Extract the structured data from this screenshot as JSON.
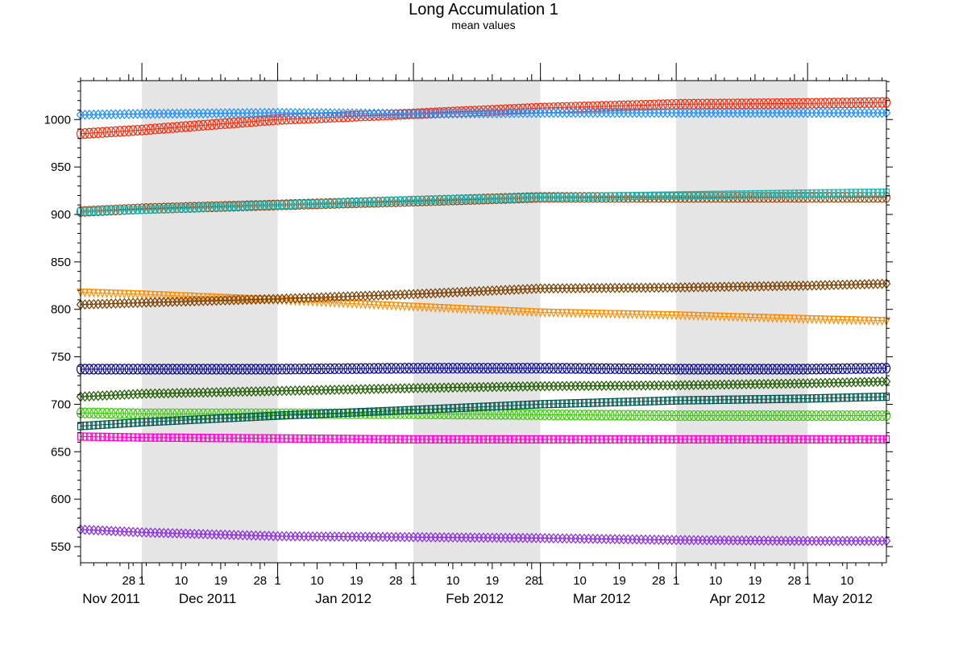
{
  "chart_data": {
    "type": "line",
    "title": "Long Accumulation 1",
    "subtitle": "mean values",
    "xlabel": "",
    "ylabel": "",
    "x_range": [
      "2011-11-17",
      "2012-05-19"
    ],
    "ylim": [
      533,
      1041
    ],
    "y_ticks": [
      550,
      600,
      650,
      700,
      750,
      800,
      850,
      900,
      950,
      1000
    ],
    "grid": false,
    "legend": "none",
    "shaded_months": [
      "Dec 2011",
      "Feb 2012",
      "Apr 2012"
    ],
    "x_day_ticks": [
      {
        "date": "2011-11-28",
        "label": "28"
      },
      {
        "date": "2011-12-01",
        "label": "1"
      },
      {
        "date": "2011-12-10",
        "label": "10"
      },
      {
        "date": "2011-12-19",
        "label": "19"
      },
      {
        "date": "2011-12-28",
        "label": "28"
      },
      {
        "date": "2012-01-01",
        "label": "1"
      },
      {
        "date": "2012-01-10",
        "label": "10"
      },
      {
        "date": "2012-01-19",
        "label": "19"
      },
      {
        "date": "2012-01-28",
        "label": "28"
      },
      {
        "date": "2012-02-01",
        "label": "1"
      },
      {
        "date": "2012-02-10",
        "label": "10"
      },
      {
        "date": "2012-02-19",
        "label": "19"
      },
      {
        "date": "2012-02-28",
        "label": "28"
      },
      {
        "date": "2012-03-01",
        "label": "1"
      },
      {
        "date": "2012-03-10",
        "label": "10"
      },
      {
        "date": "2012-03-19",
        "label": "19"
      },
      {
        "date": "2012-03-28",
        "label": "28"
      },
      {
        "date": "2012-04-01",
        "label": "1"
      },
      {
        "date": "2012-04-10",
        "label": "10"
      },
      {
        "date": "2012-04-19",
        "label": "19"
      },
      {
        "date": "2012-04-28",
        "label": "28"
      },
      {
        "date": "2012-05-01",
        "label": "1"
      },
      {
        "date": "2012-05-10",
        "label": "10"
      }
    ],
    "x_month_labels": [
      {
        "date": "2011-11-24",
        "label": "Nov 2011"
      },
      {
        "date": "2011-12-16",
        "label": "Dec 2011"
      },
      {
        "date": "2012-01-16",
        "label": "Jan 2012"
      },
      {
        "date": "2012-02-15",
        "label": "Feb 2012"
      },
      {
        "date": "2012-03-15",
        "label": "Mar 2012"
      },
      {
        "date": "2012-04-15",
        "label": "Apr 2012"
      },
      {
        "date": "2012-05-09",
        "label": "May 2012"
      }
    ],
    "series": [
      {
        "color": "#ff2200",
        "marker": "circle",
        "points": [
          [
            "2011-11-17",
            985
          ],
          [
            "2011-12-01",
            989
          ],
          [
            "2012-01-01",
            1000
          ],
          [
            "2012-02-01",
            1006
          ],
          [
            "2012-03-01",
            1012
          ],
          [
            "2012-04-01",
            1016
          ],
          [
            "2012-05-01",
            1017
          ],
          [
            "2012-05-19",
            1018
          ]
        ]
      },
      {
        "color": "#1e90ff",
        "marker": "diamond",
        "points": [
          [
            "2011-11-17",
            1005
          ],
          [
            "2011-12-01",
            1006
          ],
          [
            "2012-01-01",
            1007
          ],
          [
            "2012-02-01",
            1006
          ],
          [
            "2012-03-01",
            1007
          ],
          [
            "2012-04-01",
            1007
          ],
          [
            "2012-05-01",
            1007
          ],
          [
            "2012-05-19",
            1007
          ]
        ]
      },
      {
        "color": "#8b4513",
        "marker": "circle",
        "points": [
          [
            "2011-11-17",
            903
          ],
          [
            "2011-12-01",
            906
          ],
          [
            "2012-01-01",
            910
          ],
          [
            "2012-02-01",
            914
          ],
          [
            "2012-03-01",
            918
          ],
          [
            "2012-04-01",
            918
          ],
          [
            "2012-05-01",
            918
          ],
          [
            "2012-05-19",
            918
          ]
        ]
      },
      {
        "color": "#20b2aa",
        "marker": "square",
        "points": [
          [
            "2011-11-17",
            903
          ],
          [
            "2011-12-01",
            905
          ],
          [
            "2012-01-01",
            910
          ],
          [
            "2012-02-01",
            915
          ],
          [
            "2012-03-01",
            918
          ],
          [
            "2012-04-01",
            920
          ],
          [
            "2012-05-01",
            922
          ],
          [
            "2012-05-19",
            923
          ]
        ]
      },
      {
        "color": "#ff8c00",
        "marker": "triangle",
        "points": [
          [
            "2011-11-17",
            818
          ],
          [
            "2011-12-01",
            816
          ],
          [
            "2012-01-01",
            810
          ],
          [
            "2012-02-01",
            803
          ],
          [
            "2012-03-01",
            797
          ],
          [
            "2012-04-01",
            794
          ],
          [
            "2012-05-01",
            790
          ],
          [
            "2012-05-19",
            788
          ]
        ]
      },
      {
        "color": "#7b3f00",
        "marker": "diamond",
        "points": [
          [
            "2011-11-17",
            805
          ],
          [
            "2011-12-01",
            807
          ],
          [
            "2012-01-01",
            811
          ],
          [
            "2012-02-01",
            816
          ],
          [
            "2012-03-01",
            822
          ],
          [
            "2012-04-01",
            823
          ],
          [
            "2012-05-01",
            825
          ],
          [
            "2012-05-19",
            827
          ]
        ]
      },
      {
        "color": "#000099",
        "marker": "circle",
        "points": [
          [
            "2011-11-17",
            737
          ],
          [
            "2011-12-01",
            737
          ],
          [
            "2012-01-01",
            737
          ],
          [
            "2012-02-01",
            738
          ],
          [
            "2012-03-01",
            738
          ],
          [
            "2012-04-01",
            737
          ],
          [
            "2012-05-01",
            737
          ],
          [
            "2012-05-19",
            738
          ]
        ]
      },
      {
        "color": "#1f5c00",
        "marker": "diamond",
        "points": [
          [
            "2011-11-17",
            708
          ],
          [
            "2011-12-01",
            711
          ],
          [
            "2012-01-01",
            714
          ],
          [
            "2012-02-01",
            717
          ],
          [
            "2012-03-01",
            719
          ],
          [
            "2012-04-01",
            720
          ],
          [
            "2012-05-01",
            722
          ],
          [
            "2012-05-19",
            724
          ]
        ]
      },
      {
        "color": "#33cc00",
        "marker": "circle",
        "points": [
          [
            "2011-11-17",
            691
          ],
          [
            "2011-12-01",
            690
          ],
          [
            "2012-01-01",
            690
          ],
          [
            "2012-02-01",
            690
          ],
          [
            "2012-03-01",
            689
          ],
          [
            "2012-04-01",
            688
          ],
          [
            "2012-05-01",
            688
          ],
          [
            "2012-05-19",
            688
          ]
        ]
      },
      {
        "color": "#00594f",
        "marker": "square",
        "points": [
          [
            "2011-11-17",
            677
          ],
          [
            "2011-12-01",
            681
          ],
          [
            "2012-01-01",
            688
          ],
          [
            "2012-02-01",
            694
          ],
          [
            "2012-03-01",
            700
          ],
          [
            "2012-04-01",
            704
          ],
          [
            "2012-05-01",
            706
          ],
          [
            "2012-05-19",
            708
          ]
        ]
      },
      {
        "color": "#ff00cc",
        "marker": "square",
        "points": [
          [
            "2011-11-17",
            666
          ],
          [
            "2011-12-01",
            665
          ],
          [
            "2012-01-01",
            664
          ],
          [
            "2012-02-01",
            663
          ],
          [
            "2012-03-01",
            663
          ],
          [
            "2012-04-01",
            663
          ],
          [
            "2012-05-01",
            663
          ],
          [
            "2012-05-19",
            663
          ]
        ]
      },
      {
        "color": "#8a2be2",
        "marker": "diamond",
        "points": [
          [
            "2011-11-17",
            568
          ],
          [
            "2011-12-01",
            565
          ],
          [
            "2012-01-01",
            561
          ],
          [
            "2012-02-01",
            560
          ],
          [
            "2012-03-01",
            559
          ],
          [
            "2012-04-01",
            557
          ],
          [
            "2012-05-01",
            556
          ],
          [
            "2012-05-19",
            556
          ]
        ]
      }
    ]
  }
}
